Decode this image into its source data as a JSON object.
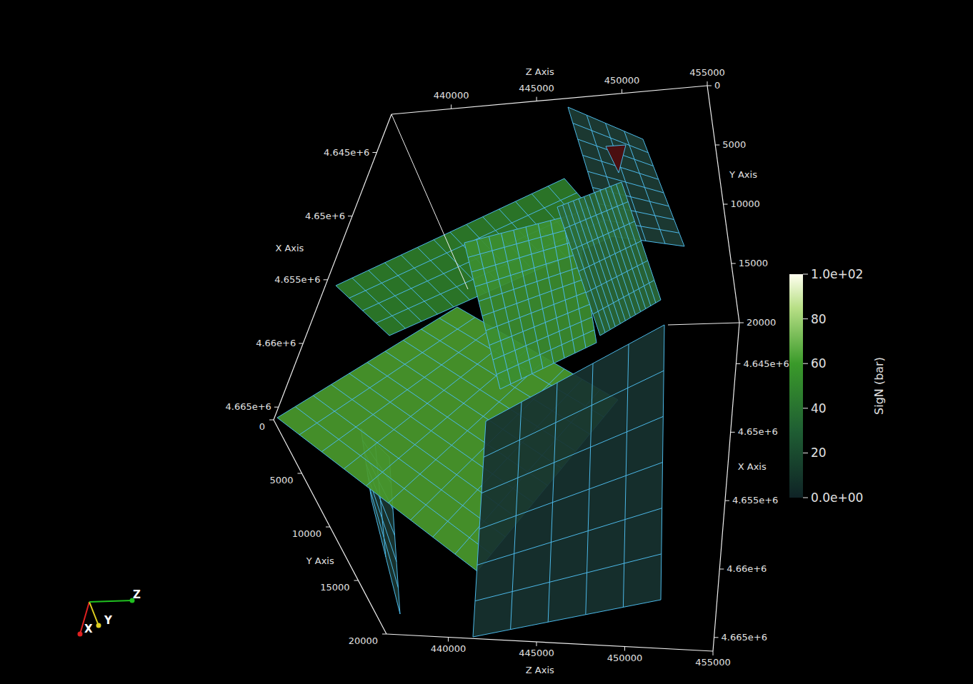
{
  "chart_data": {
    "type": "surface3d",
    "xlabel": "X Axis",
    "ylabel": "Y Axis",
    "zlabel": "Z Axis",
    "xlim": [
      4642000,
      4666000
    ],
    "xticks": [
      {
        "value": 4645000,
        "label": "4.645e+6"
      },
      {
        "value": 4650000,
        "label": "4.65e+6"
      },
      {
        "value": 4655000,
        "label": "4.655e+6"
      },
      {
        "value": 4660000,
        "label": "4.66e+6"
      },
      {
        "value": 4665000,
        "label": "4.665e+6"
      }
    ],
    "ylim": [
      0,
      20000
    ],
    "yticks": [
      0,
      5000,
      10000,
      15000,
      20000
    ],
    "zlim": [
      436500,
      455000
    ],
    "zticks": [
      440000,
      445000,
      450000,
      455000
    ],
    "colorbar": {
      "title": "SigN (bar)",
      "range": [
        0,
        100
      ],
      "ticks": [
        {
          "value": 0,
          "label": "0.0e+00"
        },
        20,
        40,
        60,
        80,
        {
          "value": 100,
          "label": "1.0e+02"
        }
      ]
    },
    "orientation_axes": [
      "X",
      "Y",
      "Z"
    ]
  }
}
